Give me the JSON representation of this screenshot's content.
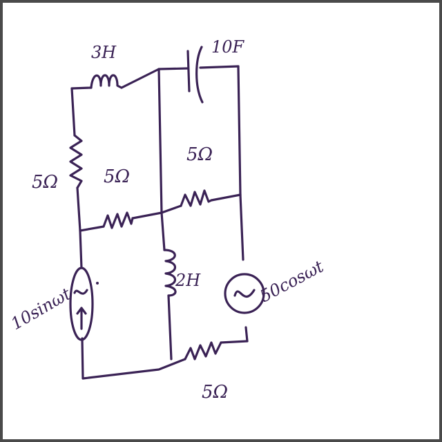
{
  "colors": {
    "ink": "#3a2255",
    "paper": "#ffffff",
    "frame": "#4a4a4a"
  },
  "labels": {
    "inductor_top": "3H",
    "capacitor_top": "10F",
    "resistor_left": "5Ω",
    "resistor_mid_left": "5Ω",
    "resistor_mid_right": "5Ω",
    "inductor_middle": "2H",
    "resistor_bottom": "5Ω",
    "source_left": "10sinωt",
    "source_right": "50cosωt",
    "source_left_arrow": "↑"
  },
  "icons": {
    "source_left": "ac-current-source-icon",
    "source_right": "ac-voltage-source-icon"
  }
}
